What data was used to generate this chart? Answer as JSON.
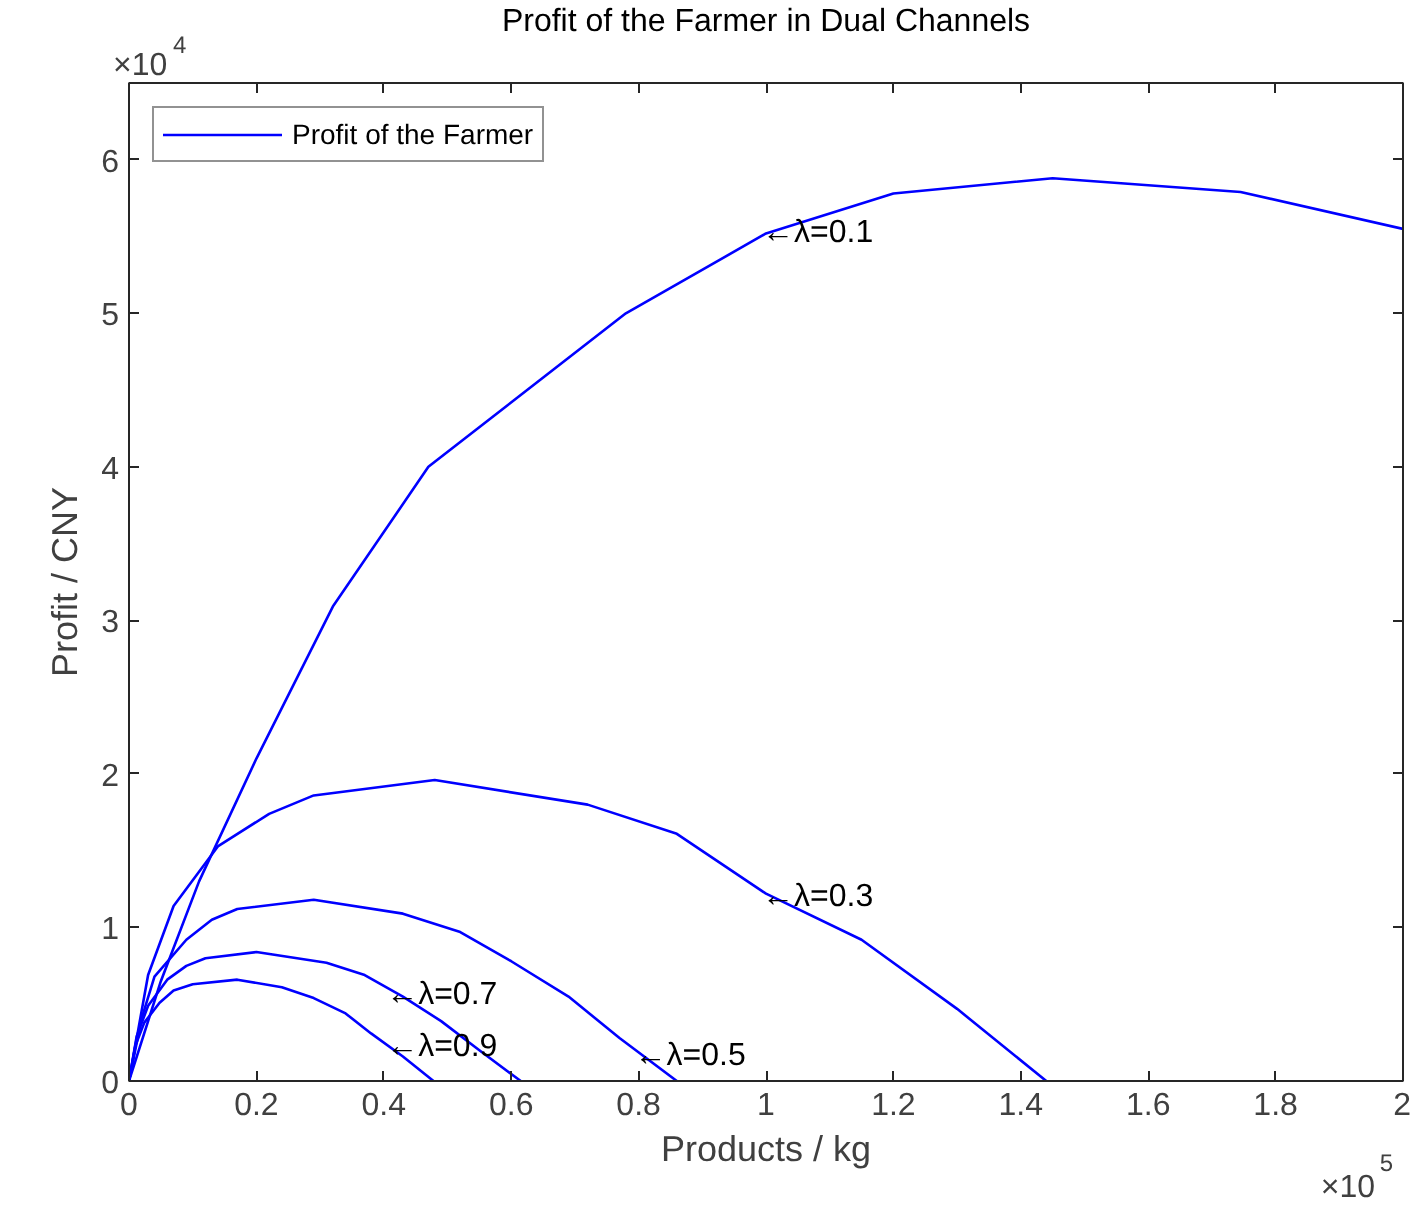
{
  "chart_data": {
    "type": "line",
    "title": "Profit of the Farmer in Dual Channels",
    "xlabel": "Products / kg",
    "ylabel": "Profit / CNY",
    "series": [
      {
        "name": "Profit of the Farmer",
        "color": "#0000ff",
        "x": [
          0,
          0.05,
          0.11,
          0.2,
          0.32,
          0.47,
          0.78,
          1.0,
          1.2,
          1.45,
          1.745,
          2.0
        ],
        "values": [
          0,
          0.65,
          1.3,
          2.1,
          3.09,
          4.0,
          5.0,
          5.52,
          5.78,
          5.88,
          5.79,
          5.55
        ]
      },
      {
        "color": "#0000ff",
        "x": [
          0,
          0.03,
          0.07,
          0.14,
          0.22,
          0.29,
          0.48,
          0.72,
          0.86,
          1.0,
          1.15,
          1.3,
          1.44
        ],
        "values": [
          0,
          0.69,
          1.14,
          1.53,
          1.74,
          1.86,
          1.96,
          1.8,
          1.61,
          1.22,
          0.92,
          0.47,
          0
        ]
      },
      {
        "color": "#0000ff",
        "x": [
          0,
          0.02,
          0.04,
          0.09,
          0.13,
          0.17,
          0.29,
          0.43,
          0.52,
          0.6,
          0.69,
          0.77,
          0.86
        ],
        "values": [
          0,
          0.41,
          0.68,
          0.92,
          1.05,
          1.12,
          1.18,
          1.09,
          0.97,
          0.78,
          0.55,
          0.28,
          0
        ]
      },
      {
        "color": "#0000ff",
        "x": [
          0,
          0.012,
          0.03,
          0.06,
          0.09,
          0.12,
          0.2,
          0.31,
          0.37,
          0.43,
          0.49,
          0.55,
          0.615
        ],
        "values": [
          0,
          0.29,
          0.49,
          0.66,
          0.75,
          0.8,
          0.84,
          0.77,
          0.69,
          0.55,
          0.39,
          0.2,
          0
        ]
      },
      {
        "color": "#0000ff",
        "x": [
          0,
          0.01,
          0.024,
          0.048,
          0.07,
          0.1,
          0.17,
          0.24,
          0.29,
          0.34,
          0.38,
          0.43,
          0.478
        ],
        "values": [
          0,
          0.23,
          0.38,
          0.51,
          0.59,
          0.63,
          0.66,
          0.61,
          0.54,
          0.44,
          0.31,
          0.16,
          0
        ]
      }
    ],
    "annotations": [
      {
        "text": "←λ=0.1",
        "x": 1.0,
        "y": 5.52
      },
      {
        "text": "←λ=0.3",
        "x": 1.0,
        "y": 1.2
      },
      {
        "text": "←λ=0.5",
        "x": 0.8,
        "y": 0.16
      },
      {
        "text": "←λ=0.7",
        "x": 0.41,
        "y": 0.56
      },
      {
        "text": "←λ=0.9",
        "x": 0.41,
        "y": 0.22
      },
      "×10$^{4}$",
      "×10$^{5}$"
    ],
    "xlim": [
      0,
      2
    ],
    "ylim": [
      0,
      6.5
    ],
    "xticks": [
      0,
      0.2,
      0.4,
      0.6,
      0.8,
      1,
      1.2,
      1.4,
      1.6,
      1.8,
      2
    ],
    "yticks": [
      0,
      1,
      2,
      3,
      4,
      5,
      6
    ],
    "grid": false,
    "legend": "top left",
    "marker": "none",
    "line_style": "solid"
  }
}
